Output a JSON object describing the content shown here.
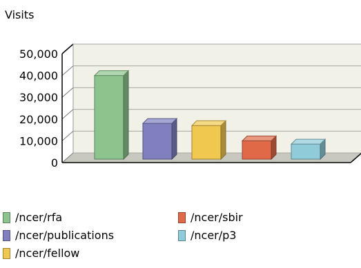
{
  "chart_data": {
    "type": "bar",
    "ylabel": "Visits",
    "categories": [
      "/ncer/rfa",
      "/ncer/publications",
      "/ncer/fellow",
      "/ncer/sbir",
      "/ncer/p3"
    ],
    "values": [
      40000,
      18000,
      17000,
      10000,
      8500
    ],
    "colors": [
      "#8dc48d",
      "#8080c0",
      "#f0c850",
      "#e06a48",
      "#8fcbd8"
    ],
    "yticks": [
      "50,000",
      "40,000",
      "30,000",
      "20,000",
      "10,000",
      "0"
    ],
    "ylim": [
      0,
      50000
    ],
    "grid": true,
    "legend_position": "bottom"
  }
}
